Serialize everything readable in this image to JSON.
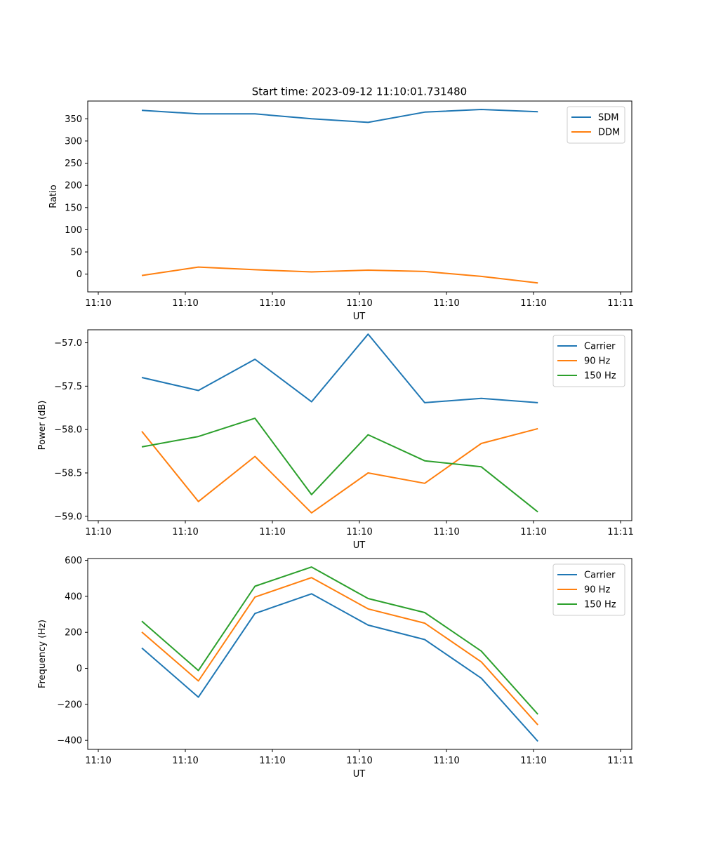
{
  "figure_title": "Start time: 2023-09-12 11:10:01.731480",
  "colors": {
    "c0": "#1f77b4",
    "c1": "#ff7f0e",
    "c2": "#2ca02c"
  },
  "chart_data": [
    {
      "type": "line",
      "xlabel": "UT",
      "ylabel": "Ratio",
      "xlim": [
        0,
        6.0
      ],
      "ylim": [
        -40,
        390
      ],
      "xticks": [
        0,
        1,
        2,
        3,
        4,
        5,
        6
      ],
      "xtick_labels": [
        "11:10",
        "11:10",
        "11:10",
        "11:10",
        "11:10",
        "11:10",
        "11:11"
      ],
      "yticks": [
        0,
        50,
        100,
        150,
        200,
        250,
        300,
        350
      ],
      "ytick_labels": [
        "0",
        "50",
        "100",
        "150",
        "200",
        "250",
        "300",
        "350"
      ],
      "x": [
        0.5,
        1.15,
        1.8,
        2.45,
        3.1,
        3.75,
        4.4,
        5.05
      ],
      "series": [
        {
          "name": "SDM",
          "color": "#1f77b4",
          "values": [
            369,
            361,
            361,
            350,
            342,
            365,
            371,
            366
          ]
        },
        {
          "name": "DDM",
          "color": "#ff7f0e",
          "values": [
            -3,
            16,
            10,
            5,
            9,
            6,
            -5,
            -20
          ]
        }
      ]
    },
    {
      "type": "line",
      "xlabel": "UT",
      "ylabel": "Power (dB)",
      "xlim": [
        0,
        6.0
      ],
      "ylim": [
        -59.05,
        -56.85
      ],
      "xticks": [
        0,
        1,
        2,
        3,
        4,
        5,
        6
      ],
      "xtick_labels": [
        "11:10",
        "11:10",
        "11:10",
        "11:10",
        "11:10",
        "11:10",
        "11:11"
      ],
      "yticks": [
        -59.0,
        -58.5,
        -58.0,
        -57.5,
        -57.0
      ],
      "ytick_labels": [
        "−59.0",
        "−58.5",
        "−58.0",
        "−57.5",
        "−57.0"
      ],
      "x": [
        0.5,
        1.15,
        1.8,
        2.45,
        3.1,
        3.75,
        4.4,
        5.05
      ],
      "series": [
        {
          "name": "Carrier",
          "color": "#1f77b4",
          "values": [
            -57.4,
            -57.55,
            -57.19,
            -57.68,
            -56.9,
            -57.69,
            -57.64,
            -57.69
          ]
        },
        {
          "name": "90 Hz",
          "color": "#ff7f0e",
          "values": [
            -58.02,
            -58.83,
            -58.31,
            -58.96,
            -58.5,
            -58.62,
            -58.16,
            -57.99
          ]
        },
        {
          "name": "150 Hz",
          "color": "#2ca02c",
          "values": [
            -58.2,
            -58.08,
            -57.87,
            -58.75,
            -58.06,
            -58.36,
            -58.43,
            -58.95
          ]
        }
      ]
    },
    {
      "type": "line",
      "xlabel": "UT",
      "ylabel": "Frequency (Hz)",
      "xlim": [
        0,
        6.0
      ],
      "ylim": [
        -450,
        610
      ],
      "xticks": [
        0,
        1,
        2,
        3,
        4,
        5,
        6
      ],
      "xtick_labels": [
        "11:10",
        "11:10",
        "11:10",
        "11:10",
        "11:10",
        "11:10",
        "11:11"
      ],
      "yticks": [
        -400,
        -200,
        0,
        200,
        400,
        600
      ],
      "ytick_labels": [
        "−400",
        "−200",
        "0",
        "200",
        "400",
        "600"
      ],
      "x": [
        0.5,
        1.15,
        1.8,
        2.45,
        3.1,
        3.75,
        4.4,
        5.05
      ],
      "series": [
        {
          "name": "Carrier",
          "color": "#1f77b4",
          "values": [
            113,
            -160,
            305,
            414,
            240,
            160,
            -55,
            -405
          ]
        },
        {
          "name": "90 Hz",
          "color": "#ff7f0e",
          "values": [
            202,
            -70,
            396,
            504,
            330,
            251,
            36,
            -314
          ]
        },
        {
          "name": "150 Hz",
          "color": "#2ca02c",
          "values": [
            262,
            -12,
            456,
            563,
            388,
            310,
            96,
            -255
          ]
        }
      ]
    }
  ]
}
